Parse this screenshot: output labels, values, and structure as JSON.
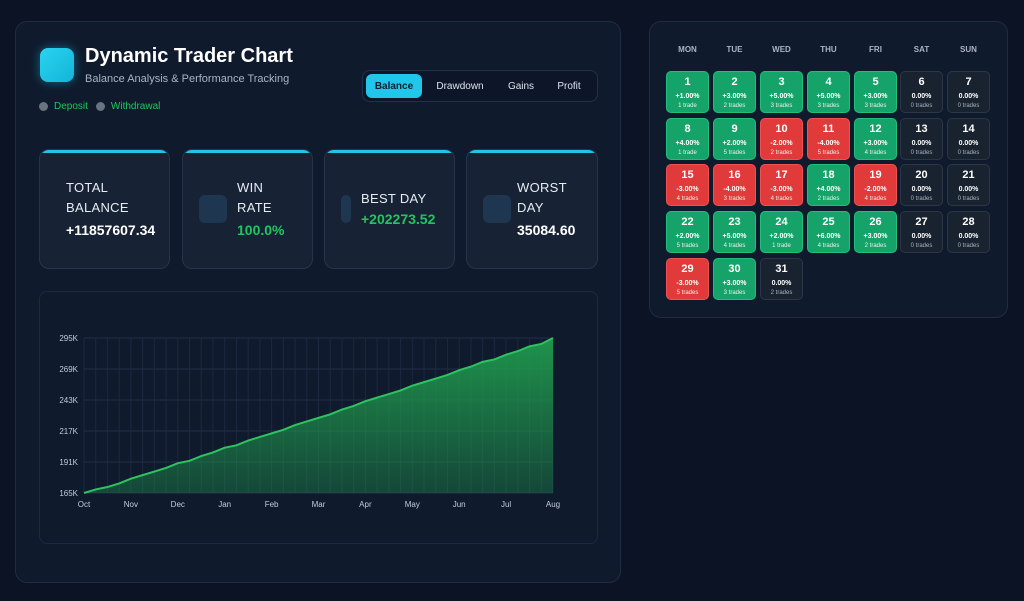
{
  "header": {
    "title": "Dynamic Trader Chart",
    "subtitle": "Balance Analysis & Performance Tracking"
  },
  "legend": {
    "deposit": "Deposit",
    "withdrawal": "Withdrawal"
  },
  "tabs": [
    {
      "label": "Balance",
      "active": true
    },
    {
      "label": "Drawdown",
      "active": false
    },
    {
      "label": "Gains",
      "active": false
    },
    {
      "label": "Profit",
      "active": false
    }
  ],
  "stats": {
    "total_balance": {
      "label": "TOTAL BALANCE",
      "value": "+11857607.34"
    },
    "win_rate": {
      "label": "WIN RATE",
      "value": "100.0%"
    },
    "best_day": {
      "label": "BEST DAY",
      "value": "+202273.52"
    },
    "worst_day": {
      "label": "WORST DAY",
      "value": "35084.60"
    }
  },
  "chart_data": {
    "type": "area",
    "title": "",
    "xlabel": "",
    "ylabel": "",
    "categories": [
      "Oct",
      "Nov",
      "Dec",
      "Jan",
      "Feb",
      "Mar",
      "Apr",
      "May",
      "Jun",
      "Jul",
      "Aug"
    ],
    "yticks": [
      "165K",
      "191K",
      "217K",
      "243K",
      "269K",
      "295K"
    ],
    "ytick_values": [
      165000,
      191000,
      217000,
      243000,
      269000,
      295000
    ],
    "ylim": [
      165000,
      295000
    ],
    "x": [
      0,
      0.25,
      0.5,
      0.75,
      1,
      1.25,
      1.5,
      1.75,
      2,
      2.25,
      2.5,
      2.75,
      3,
      3.25,
      3.5,
      3.75,
      4,
      4.25,
      4.5,
      4.75,
      5,
      5.25,
      5.5,
      5.75,
      6,
      6.25,
      6.5,
      6.75,
      7,
      7.25,
      7.5,
      7.75,
      8,
      8.25,
      8.5,
      8.75,
      9,
      9.25,
      9.5,
      9.75,
      10
    ],
    "values": [
      165000,
      168000,
      170000,
      173000,
      177000,
      180000,
      183000,
      186000,
      190000,
      192000,
      196000,
      199000,
      203000,
      205000,
      209000,
      212000,
      215000,
      218000,
      222000,
      225000,
      228000,
      231000,
      235000,
      238000,
      242000,
      245000,
      248000,
      251000,
      255000,
      258000,
      261000,
      264000,
      268000,
      271000,
      275000,
      277000,
      281000,
      284000,
      288000,
      290000,
      295000
    ],
    "grid": true,
    "colors": {
      "line": "#2fc35f",
      "fill": "#1f9a4d"
    }
  },
  "calendar": {
    "weekdays": [
      "MON",
      "TUE",
      "WED",
      "THU",
      "FRI",
      "SAT",
      "SUN"
    ],
    "days": [
      {
        "day": "1",
        "pct": "+1.00%",
        "trades": "1 trade",
        "status": "pos"
      },
      {
        "day": "2",
        "pct": "+3.00%",
        "trades": "2 trades",
        "status": "pos"
      },
      {
        "day": "3",
        "pct": "+5.00%",
        "trades": "3 trades",
        "status": "pos"
      },
      {
        "day": "4",
        "pct": "+5.00%",
        "trades": "3 trades",
        "status": "pos"
      },
      {
        "day": "5",
        "pct": "+3.00%",
        "trades": "3 trades",
        "status": "pos"
      },
      {
        "day": "6",
        "pct": "0.00%",
        "trades": "0 trades",
        "status": "zero"
      },
      {
        "day": "7",
        "pct": "0.00%",
        "trades": "0 trades",
        "status": "zero"
      },
      {
        "day": "8",
        "pct": "+4.00%",
        "trades": "1 trade",
        "status": "pos"
      },
      {
        "day": "9",
        "pct": "+2.00%",
        "trades": "5 trades",
        "status": "pos"
      },
      {
        "day": "10",
        "pct": "-2.00%",
        "trades": "2 trades",
        "status": "neg"
      },
      {
        "day": "11",
        "pct": "-4.00%",
        "trades": "5 trades",
        "status": "neg"
      },
      {
        "day": "12",
        "pct": "+3.00%",
        "trades": "4 trades",
        "status": "pos"
      },
      {
        "day": "13",
        "pct": "0.00%",
        "trades": "0 trades",
        "status": "zero"
      },
      {
        "day": "14",
        "pct": "0.00%",
        "trades": "0 trades",
        "status": "zero"
      },
      {
        "day": "15",
        "pct": "-3.00%",
        "trades": "4 trades",
        "status": "neg"
      },
      {
        "day": "16",
        "pct": "-4.00%",
        "trades": "3 trades",
        "status": "neg"
      },
      {
        "day": "17",
        "pct": "-3.00%",
        "trades": "4 trades",
        "status": "neg"
      },
      {
        "day": "18",
        "pct": "+4.00%",
        "trades": "2 trades",
        "status": "pos"
      },
      {
        "day": "19",
        "pct": "-2.00%",
        "trades": "4 trades",
        "status": "neg"
      },
      {
        "day": "20",
        "pct": "0.00%",
        "trades": "0 trades",
        "status": "zero"
      },
      {
        "day": "21",
        "pct": "0.00%",
        "trades": "0 trades",
        "status": "zero"
      },
      {
        "day": "22",
        "pct": "+2.00%",
        "trades": "5 trades",
        "status": "pos"
      },
      {
        "day": "23",
        "pct": "+5.00%",
        "trades": "4 trades",
        "status": "pos"
      },
      {
        "day": "24",
        "pct": "+2.00%",
        "trades": "1 trade",
        "status": "pos"
      },
      {
        "day": "25",
        "pct": "+6.00%",
        "trades": "4 trades",
        "status": "pos"
      },
      {
        "day": "26",
        "pct": "+3.00%",
        "trades": "2 trades",
        "status": "pos"
      },
      {
        "day": "27",
        "pct": "0.00%",
        "trades": "0 trades",
        "status": "zero"
      },
      {
        "day": "28",
        "pct": "0.00%",
        "trades": "0 trades",
        "status": "zero"
      },
      {
        "day": "29",
        "pct": "-3.00%",
        "trades": "5 trades",
        "status": "neg"
      },
      {
        "day": "30",
        "pct": "+3.00%",
        "trades": "3 trades",
        "status": "pos"
      },
      {
        "day": "31",
        "pct": "0.00%",
        "trades": "2 trades",
        "status": "zero"
      }
    ]
  }
}
